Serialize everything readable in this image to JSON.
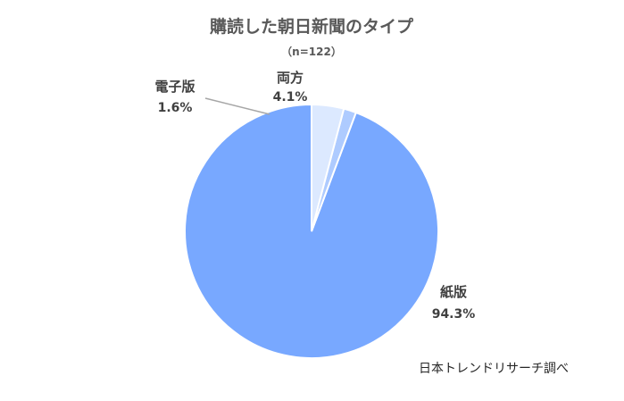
{
  "chart_data": {
    "type": "pie",
    "title": "購読した朝日新聞のタイプ",
    "subtitle": "（n=122）",
    "slices": [
      {
        "label": "紙版",
        "value": 94.3,
        "value_label": "94.3%",
        "color": "#78A8FF"
      },
      {
        "label": "電子版",
        "value": 1.6,
        "value_label": "1.6%",
        "color": "#AECBFF"
      },
      {
        "label": "両方",
        "value": 4.1,
        "value_label": "4.1%",
        "color": "#DCE9FF"
      }
    ],
    "start_angle_deg": 0,
    "direction": "counterclockwise",
    "legend": "none"
  },
  "source_note": "日本トレンドリサーチ調べ"
}
